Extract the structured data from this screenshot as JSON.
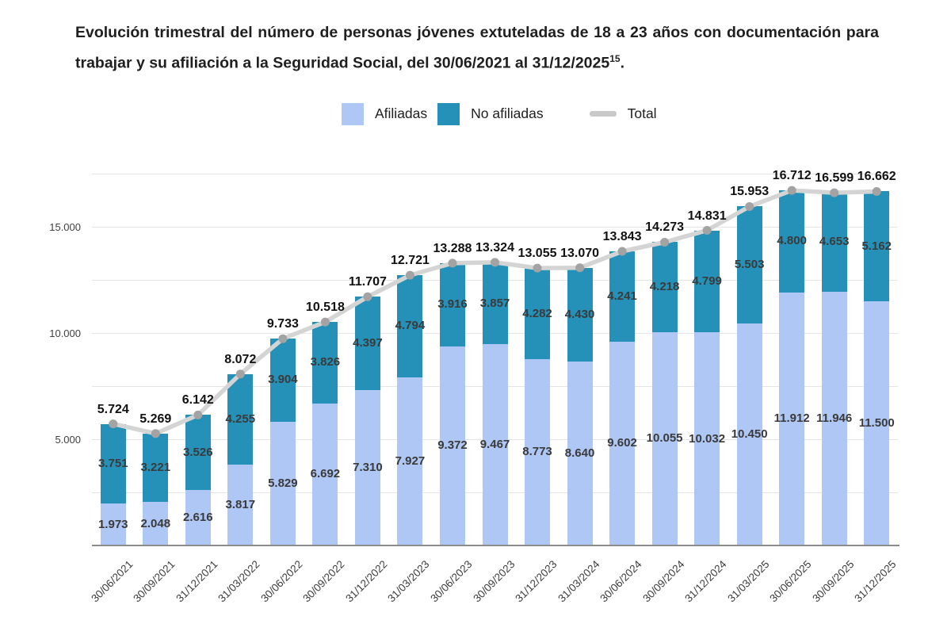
{
  "title": {
    "text": "Evolución trimestral del número de personas jóvenes extuteladas de 18 a 23 años con documentación para trabajar y su afiliación a la Seguridad Social, del 30/06/2021 al 31/12/2025",
    "superscript": "15",
    "suffix": "."
  },
  "legend": {
    "afiliadas_label": "Afiliadas",
    "no_afiliadas_label": "No afiliadas",
    "total_label": "Total"
  },
  "colors": {
    "afiliadas": "#aec7f4",
    "no_afiliadas": "#2591b8",
    "total_line": "#d4d4d4",
    "total_dot": "#a3a3a3"
  },
  "chart_data": {
    "type": "bar",
    "stacked": true,
    "title": "Evolución trimestral del número de personas jóvenes extuteladas de 18 a 23 años con documentación para trabajar y su afiliación a la Seguridad Social, del 30/06/2021 al 31/12/2025 (15).",
    "legend_position": "top",
    "grid": true,
    "categories": [
      "30/06/2021",
      "30/09/2021",
      "31/12/2021",
      "31/03/2022",
      "30/06/2022",
      "30/09/2022",
      "31/12/2022",
      "31/03/2023",
      "30/06/2023",
      "30/09/2023",
      "31/12/2023",
      "31/03/2024",
      "30/06/2024",
      "30/09/2024",
      "31/12/2024",
      "31/03/2025",
      "30/06/2025",
      "30/09/2025",
      "31/12/2025"
    ],
    "series": [
      {
        "name": "Afiliadas",
        "values": [
          1973,
          2048,
          2616,
          3817,
          5829,
          6692,
          7310,
          7927,
          9372,
          9467,
          8773,
          8640,
          9602,
          10055,
          10032,
          10450,
          11912,
          11946,
          11500
        ]
      },
      {
        "name": "No afiliadas",
        "values": [
          3751,
          3221,
          3526,
          4255,
          3904,
          3826,
          4397,
          4794,
          3916,
          3857,
          4282,
          4430,
          4241,
          4218,
          4799,
          5503,
          4800,
          4653,
          5162
        ]
      }
    ],
    "totals": [
      5724,
      5269,
      6142,
      8072,
      9733,
      10518,
      11707,
      12721,
      13288,
      13324,
      13055,
      13070,
      13843,
      14273,
      14831,
      15953,
      16712,
      16599,
      16662
    ],
    "total_series_name": "Total",
    "y_axis": {
      "ticks": [
        5000,
        10000,
        15000
      ],
      "tick_labels": [
        "5.000",
        "10.000",
        "15.000"
      ],
      "gridline_step": 2500,
      "range": [
        0,
        17500
      ]
    },
    "xlabel": "",
    "ylabel": ""
  }
}
